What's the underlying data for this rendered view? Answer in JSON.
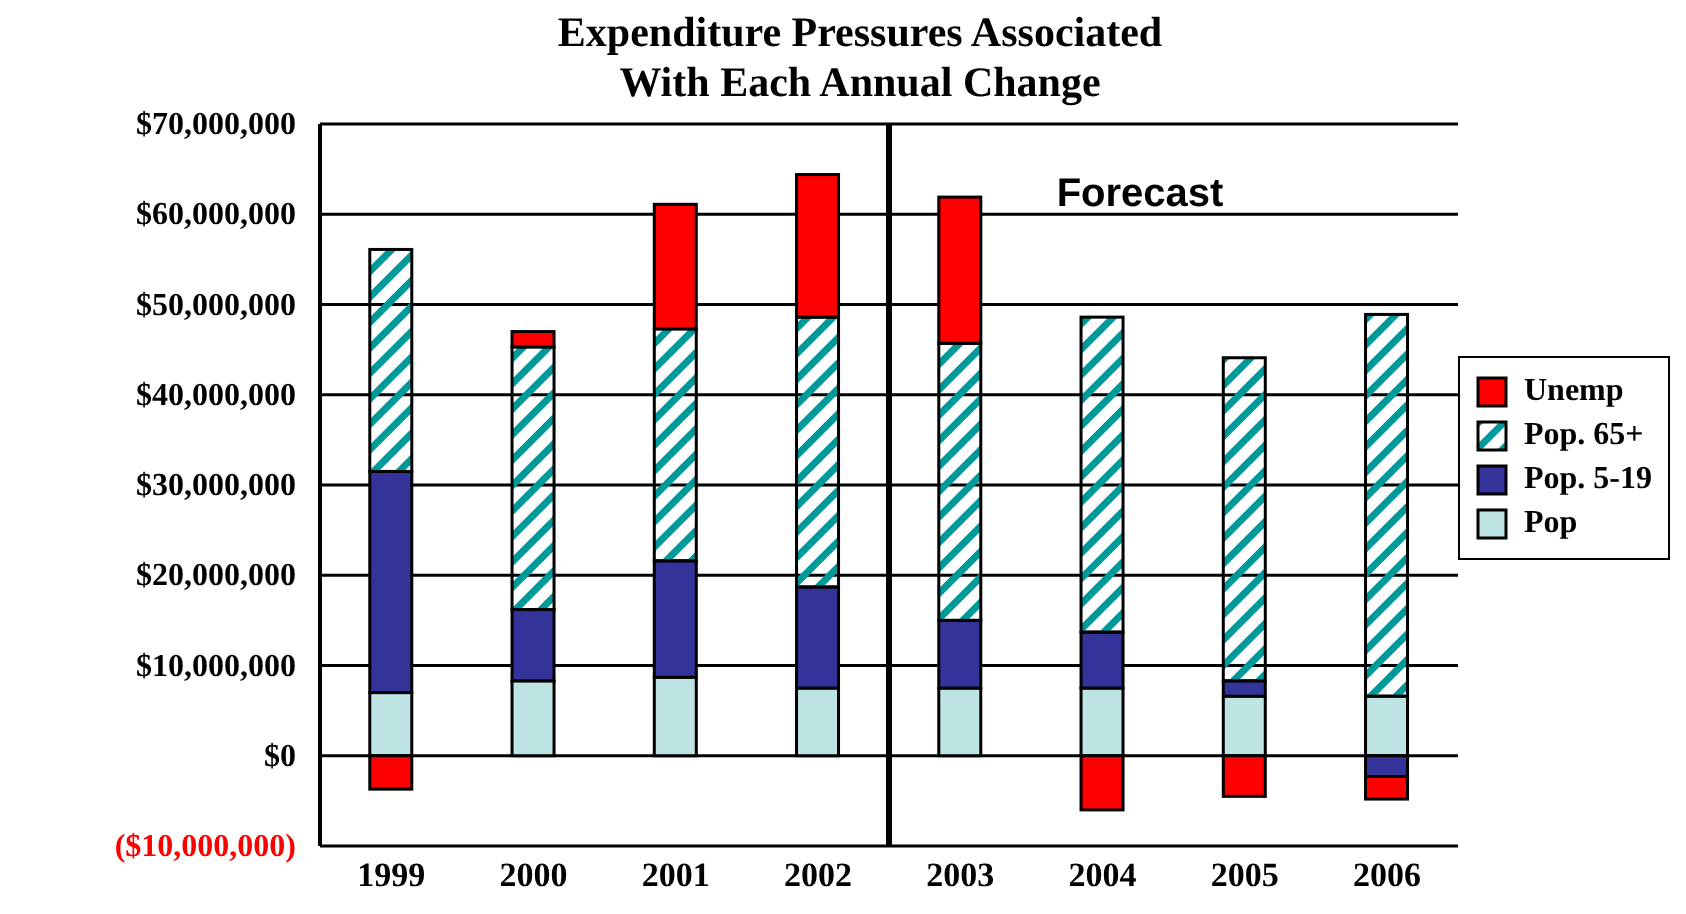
{
  "chart_data": {
    "type": "bar",
    "title": "Expenditure Pressures Associated With Each Annual Change",
    "categories": [
      "1999",
      "2000",
      "2001",
      "2002",
      "2003",
      "2004",
      "2005",
      "2006"
    ],
    "stacked": true,
    "series": [
      {
        "name": "Pop",
        "color": "#bde3e3",
        "values": [
          7000000,
          8300000,
          8700000,
          7500000,
          7500000,
          7500000,
          6600000,
          6600000
        ]
      },
      {
        "name": "Pop. 5-19",
        "color": "#333399",
        "values": [
          24500000,
          7900000,
          12900000,
          11200000,
          7500000,
          6200000,
          1700000,
          -2300000
        ]
      },
      {
        "name": "Pop. 65+",
        "color": "#009999",
        "values": [
          24600000,
          29100000,
          25700000,
          29900000,
          30700000,
          34900000,
          35800000,
          42300000
        ]
      },
      {
        "name": "Unemp",
        "color": "#ff0000",
        "values": [
          -3700000,
          1700000,
          13800000,
          15800000,
          16200000,
          -6000000,
          -4500000,
          -2500000
        ]
      }
    ],
    "ylim": [
      -10000000,
      70000000
    ],
    "yticks": [
      {
        "value": -10000000,
        "label": "($10,000,000)"
      },
      {
        "value": 0,
        "label": "$0"
      },
      {
        "value": 10000000,
        "label": "$10,000,000"
      },
      {
        "value": 20000000,
        "label": "$20,000,000"
      },
      {
        "value": 30000000,
        "label": "$30,000,000"
      },
      {
        "value": 40000000,
        "label": "$40,000,000"
      },
      {
        "value": 50000000,
        "label": "$50,000,000"
      },
      {
        "value": 60000000,
        "label": "$60,000,000"
      },
      {
        "value": 70000000,
        "label": "$70,000,000"
      }
    ],
    "ref_lines": [
      {
        "axis": "x",
        "value": "2003"
      }
    ],
    "annotations": [
      "Forecast"
    ],
    "grid": "y",
    "legend": "right"
  }
}
